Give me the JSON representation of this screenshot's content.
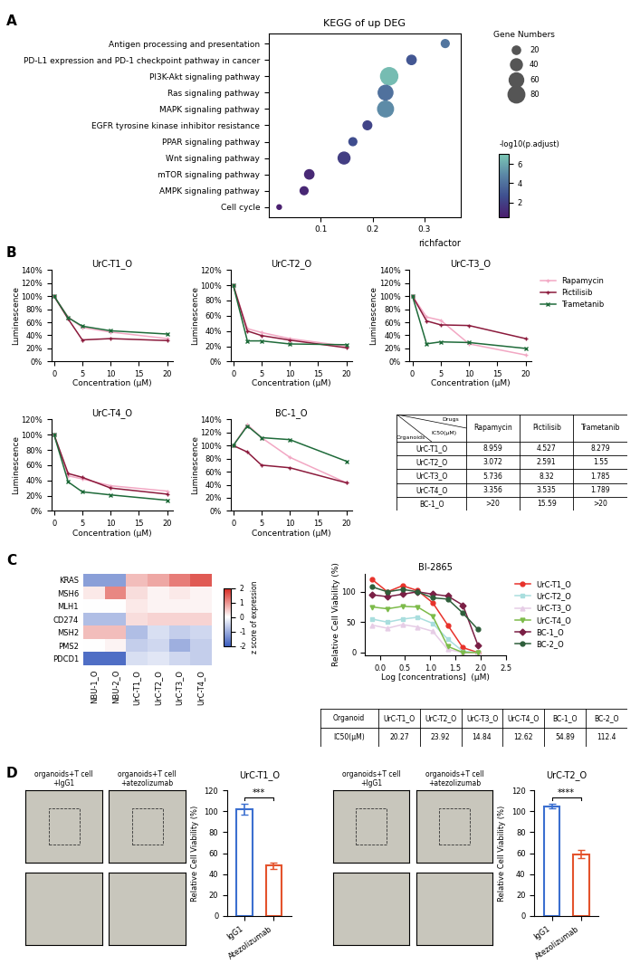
{
  "chart_data": [
    {
      "type": "dot",
      "panel_label": "A",
      "title": "KEGG of up DEG",
      "x_label": "richfactor",
      "categories": [
        "Antigen processing and presentation",
        "PD-L1 expression and PD-1 checkpoint pathway in cancer",
        "PI3K-Akt signaling pathway",
        "Ras signaling pathway",
        "MAPK signaling pathway",
        "EGFR tyrosine kinase inhibitor resistance",
        "PPAR signaling pathway",
        "Wnt signaling pathway",
        "mTOR signaling pathway",
        "AMPK signaling pathway",
        "Cell cycle"
      ],
      "values": [
        0.34,
        0.275,
        0.232,
        0.225,
        0.225,
        0.19,
        0.162,
        0.145,
        0.078,
        0.068,
        0.02
      ],
      "sizes": [
        18,
        25,
        85,
        62,
        72,
        22,
        18,
        40,
        25,
        18,
        6
      ],
      "color_values": [
        4.2,
        3.0,
        6.6,
        4.0,
        5.0,
        2.2,
        2.6,
        1.9,
        1.0,
        0.9,
        0.6
      ],
      "xlim": [
        0.0,
        0.37
      ],
      "xticks": [
        0.1,
        0.2,
        0.3
      ],
      "size_legend_title": "Gene Numbers",
      "size_legend": [
        20,
        40,
        60,
        80
      ],
      "colorbar_title": "-log10(p.adjust)",
      "colorbar_range": [
        0.5,
        7.0
      ],
      "colorbar_ticks": [
        2,
        4,
        6
      ]
    },
    {
      "type": "line",
      "panel_label": "B",
      "title": "UrC-T1_O",
      "x_label": "Concentration (μM)",
      "y_label": "Luminescence",
      "x": [
        0,
        2.5,
        5,
        10,
        20
      ],
      "xlim": [
        -0.5,
        21
      ],
      "xticks": [
        0,
        5,
        10,
        15,
        20
      ],
      "ylim": [
        0,
        140
      ],
      "yticks": [
        {
          "value": 0,
          "label": "0%"
        },
        {
          "value": 20,
          "label": "20%"
        },
        {
          "value": 40,
          "label": "40%"
        },
        {
          "value": 60,
          "label": "60%"
        },
        {
          "value": 80,
          "label": "80%"
        },
        {
          "value": 100,
          "label": "100%"
        },
        {
          "value": 120,
          "label": "120%"
        },
        {
          "value": 140,
          "label": "140%"
        }
      ],
      "series": [
        {
          "name": "Rapamycin",
          "color": "#f2a7c3",
          "marker": "plus",
          "values": [
            100,
            68,
            52,
            45,
            35
          ]
        },
        {
          "name": "Pictilisib",
          "color": "#8b1a3c",
          "marker": "plus",
          "values": [
            100,
            65,
            33,
            35,
            32
          ]
        },
        {
          "name": "Trametanib",
          "color": "#1f6b3a",
          "marker": "x",
          "values": [
            100,
            67,
            54,
            47,
            42
          ]
        }
      ]
    },
    {
      "type": "line",
      "title": "UrC-T2_O",
      "x_label": "Concentration (μM)",
      "y_label": "Luminescence",
      "x": [
        0,
        2.5,
        5,
        10,
        20
      ],
      "xlim": [
        -0.5,
        21
      ],
      "xticks": [
        0,
        5,
        10,
        15,
        20
      ],
      "ylim": [
        0,
        120
      ],
      "yticks": [
        {
          "value": 0,
          "label": "0%"
        },
        {
          "value": 20,
          "label": "20%"
        },
        {
          "value": 40,
          "label": "40%"
        },
        {
          "value": 60,
          "label": "60%"
        },
        {
          "value": 80,
          "label": "80%"
        },
        {
          "value": 100,
          "label": "100%"
        },
        {
          "value": 120,
          "label": "120%"
        }
      ],
      "series": [
        {
          "name": "Rapamycin",
          "color": "#f2a7c3",
          "marker": "plus",
          "values": [
            100,
            43,
            38,
            30,
            20
          ]
        },
        {
          "name": "Pictilisib",
          "color": "#8b1a3c",
          "marker": "plus",
          "values": [
            100,
            40,
            34,
            28,
            18
          ]
        },
        {
          "name": "Trametanib",
          "color": "#1f6b3a",
          "marker": "x",
          "values": [
            100,
            27,
            27,
            23,
            22
          ]
        }
      ]
    },
    {
      "type": "line",
      "title": "UrC-T3_O",
      "x_label": "Concentration (μM)",
      "y_label": "Luminescence",
      "legend": "upper left",
      "x": [
        0,
        2.5,
        5,
        10,
        20
      ],
      "xlim": [
        -0.5,
        21
      ],
      "xticks": [
        0,
        5,
        10,
        15,
        20
      ],
      "ylim": [
        0,
        140
      ],
      "yticks": [
        {
          "value": 0,
          "label": "0%"
        },
        {
          "value": 20,
          "label": "20%"
        },
        {
          "value": 40,
          "label": "40%"
        },
        {
          "value": 60,
          "label": "60%"
        },
        {
          "value": 80,
          "label": "80%"
        },
        {
          "value": 100,
          "label": "100%"
        },
        {
          "value": 120,
          "label": "120%"
        },
        {
          "value": 140,
          "label": "140%"
        }
      ],
      "series": [
        {
          "name": "Rapamycin",
          "color": "#f2a7c3",
          "marker": "plus",
          "values": [
            100,
            68,
            63,
            27,
            10
          ]
        },
        {
          "name": "Pictilisib",
          "color": "#8b1a3c",
          "marker": "plus",
          "values": [
            100,
            62,
            56,
            55,
            35
          ]
        },
        {
          "name": "Trametanib",
          "color": "#1f6b3a",
          "marker": "x",
          "values": [
            100,
            27,
            30,
            29,
            20
          ]
        }
      ]
    },
    {
      "type": "line",
      "title": "UrC-T4_O",
      "x_label": "Concentration (μM)",
      "y_label": "Luminescence",
      "x": [
        0,
        2.5,
        5,
        10,
        20
      ],
      "xlim": [
        -0.5,
        21
      ],
      "xticks": [
        0,
        5,
        10,
        15,
        20
      ],
      "ylim": [
        0,
        120
      ],
      "yticks": [
        {
          "value": 0,
          "label": "0%"
        },
        {
          "value": 20,
          "label": "20%"
        },
        {
          "value": 40,
          "label": "40%"
        },
        {
          "value": 60,
          "label": "60%"
        },
        {
          "value": 80,
          "label": "80%"
        },
        {
          "value": 100,
          "label": "100%"
        },
        {
          "value": 120,
          "label": "120%"
        }
      ],
      "series": [
        {
          "name": "Rapamycin",
          "color": "#f2a7c3",
          "marker": "plus",
          "values": [
            100,
            46,
            42,
            33,
            26
          ]
        },
        {
          "name": "Pictilisib",
          "color": "#8b1a3c",
          "marker": "plus",
          "values": [
            100,
            49,
            44,
            30,
            22
          ]
        },
        {
          "name": "Trametanib",
          "color": "#1f6b3a",
          "marker": "x",
          "values": [
            100,
            38,
            25,
            21,
            14
          ]
        }
      ]
    },
    {
      "type": "line",
      "title": "BC-1_O",
      "x_label": "Concentration (μM)",
      "y_label": "Luminescence",
      "x": [
        0,
        2.5,
        5,
        10,
        20
      ],
      "xlim": [
        -0.5,
        21
      ],
      "xticks": [
        0,
        5,
        10,
        15,
        20
      ],
      "ylim": [
        0,
        140
      ],
      "yticks": [
        {
          "value": 0,
          "label": "0%"
        },
        {
          "value": 20,
          "label": "20%"
        },
        {
          "value": 40,
          "label": "40%"
        },
        {
          "value": 60,
          "label": "60%"
        },
        {
          "value": 80,
          "label": "80%"
        },
        {
          "value": 100,
          "label": "100%"
        },
        {
          "value": 120,
          "label": "120%"
        },
        {
          "value": 140,
          "label": "140%"
        }
      ],
      "series": [
        {
          "name": "Rapamycin",
          "color": "#f2a7c3",
          "marker": "plus",
          "values": [
            100,
            132,
            112,
            82,
            43
          ]
        },
        {
          "name": "Pictilisib",
          "color": "#8b1a3c",
          "marker": "plus",
          "values": [
            100,
            90,
            70,
            66,
            43
          ]
        },
        {
          "name": "Trametanib",
          "color": "#1f6b3a",
          "marker": "x",
          "values": [
            100,
            130,
            112,
            109,
            76
          ]
        }
      ]
    },
    {
      "type": "table",
      "header": {
        "corner": [
          "Drugs",
          "IC50(μM)",
          "Organoids"
        ],
        "columns": [
          "Rapamycin",
          "Pictilisib",
          "Trametanib"
        ]
      },
      "rows": [
        [
          "UrC-T1_O",
          "8.959",
          "4.527",
          "8.279"
        ],
        [
          "UrC-T2_O",
          "3.072",
          "2.591",
          "1.55"
        ],
        [
          "UrC-T3_O",
          "5.736",
          "8.32",
          "1.785"
        ],
        [
          "UrC-T4_O",
          "3.356",
          "3.535",
          "1.789"
        ],
        [
          "BC-1_O",
          ">20",
          "15.59",
          ">20"
        ]
      ]
    },
    {
      "type": "heatmap",
      "panel_label": "C",
      "rows": [
        "KRAS",
        "MSH6",
        "MLH1",
        "CD274",
        "MSH2",
        "PMS2",
        "PDCD1"
      ],
      "columns": [
        "NBU-1_O",
        "NBU-2_O",
        "UrC-T1_O",
        "UrC-T2_O",
        "UrC-T3_O",
        "UrC-T4_O"
      ],
      "cells": [
        [
          -1.2,
          -1.2,
          0.6,
          0.8,
          1.2,
          1.5
        ],
        [
          0.2,
          1.1,
          0.3,
          0.1,
          0.2,
          0.1
        ],
        [
          0.0,
          0.0,
          0.2,
          0.1,
          0.1,
          0.1
        ],
        [
          -0.8,
          -0.8,
          0.3,
          0.4,
          0.4,
          0.4
        ],
        [
          0.6,
          0.6,
          -0.8,
          -0.4,
          -0.6,
          -0.5
        ],
        [
          0.0,
          0.1,
          -0.6,
          -0.5,
          -1.0,
          -0.6
        ],
        [
          -1.8,
          -1.8,
          -0.4,
          -0.3,
          -0.5,
          -0.6
        ]
      ],
      "colorbar_title": "z score of expression",
      "colorbar_range": [
        -2,
        2
      ],
      "colorbar_ticks": [
        -2,
        -1,
        0,
        1,
        2
      ]
    },
    {
      "type": "line",
      "title": "BI-2865",
      "x_label": "Log [concentrations]  (μM)",
      "y_label": "Relative Cell Viability (%)",
      "legend": "upper left",
      "x": [
        -0.15,
        0.15,
        0.45,
        0.75,
        1.05,
        1.35,
        1.65,
        1.95
      ],
      "xlim": [
        -0.3,
        2.5
      ],
      "xticks": [
        {
          "value": 0,
          "label": "0.0"
        },
        {
          "value": 0.5,
          "label": "0.5"
        },
        {
          "value": 1,
          "label": "1.0"
        },
        {
          "value": 1.5,
          "label": "1.5"
        },
        {
          "value": 2,
          "label": "2.0"
        },
        {
          "value": 2.5,
          "label": "2.5"
        }
      ],
      "ylim": [
        -5,
        130
      ],
      "yticks": [
        0,
        50,
        100
      ],
      "series": [
        {
          "name": "UrC-T1_O",
          "color": "#e8322b",
          "marker": "circle",
          "values": [
            120,
            100,
            110,
            102,
            82,
            45,
            8,
            0
          ]
        },
        {
          "name": "UrC-T2_O",
          "color": "#a9dede",
          "marker": "square",
          "values": [
            55,
            50,
            55,
            58,
            48,
            22,
            2,
            0
          ]
        },
        {
          "name": "UrC-T3_O",
          "color": "#e6cde6",
          "marker": "triangle_up",
          "values": [
            45,
            40,
            46,
            42,
            35,
            5,
            0,
            0
          ]
        },
        {
          "name": "UrC-T4_O",
          "color": "#7dbb4a",
          "marker": "triangle_down",
          "values": [
            75,
            72,
            76,
            75,
            60,
            10,
            0,
            0
          ]
        },
        {
          "name": "BC-1_O",
          "color": "#7a1f45",
          "marker": "diamond",
          "values": [
            95,
            92,
            96,
            100,
            96,
            93,
            78,
            12
          ]
        },
        {
          "name": "BC-2_O",
          "color": "#2e5e3a",
          "marker": "circle",
          "values": [
            108,
            100,
            104,
            100,
            90,
            88,
            65,
            38
          ]
        }
      ]
    },
    {
      "type": "table",
      "header": {
        "corner": "Organoid",
        "columns": [
          "UrC-T1_O",
          "UrC-T2_O",
          "UrC-T3_O",
          "UrC-T4_O",
          "BC-1_O",
          "BC-2_O"
        ]
      },
      "rows": [
        [
          "IC50(μM)",
          "20.27",
          "23.92",
          "14.84",
          "12.62",
          "54.89",
          "112.4"
        ]
      ]
    },
    {
      "type": "image",
      "panel_label": "D",
      "title": "organoids+T cell\n+IgG1"
    },
    {
      "type": "image",
      "title": "organoids+T cell\n+atezolizumab"
    },
    {
      "type": "bar",
      "title": "UrC-T1_O",
      "y_label": "Relative Cell Viability (%)",
      "categories": [
        "IgG1",
        "Atezolizumab"
      ],
      "values": [
        102,
        48
      ],
      "errors": [
        5,
        3
      ],
      "colors": [
        "#3b6fd0",
        "#e4532c"
      ],
      "ylim": [
        0,
        120
      ],
      "yticks": [
        0,
        20,
        40,
        60,
        80,
        100,
        120
      ],
      "significance": "***"
    },
    {
      "type": "image",
      "title": "organoids+T cell\n+IgG1"
    },
    {
      "type": "image",
      "title": "organoids+T cell\n+atezolizumab"
    },
    {
      "type": "bar",
      "title": "UrC-T2_O",
      "y_label": "Relative Cell Viability (%)",
      "categories": [
        "IgG1",
        "Atezolizumab"
      ],
      "values": [
        105,
        59
      ],
      "errors": [
        2,
        4
      ],
      "colors": [
        "#3b6fd0",
        "#e4532c"
      ],
      "ylim": [
        0,
        120
      ],
      "yticks": [
        0,
        20,
        40,
        60,
        80,
        100,
        120
      ],
      "significance": "****"
    }
  ]
}
